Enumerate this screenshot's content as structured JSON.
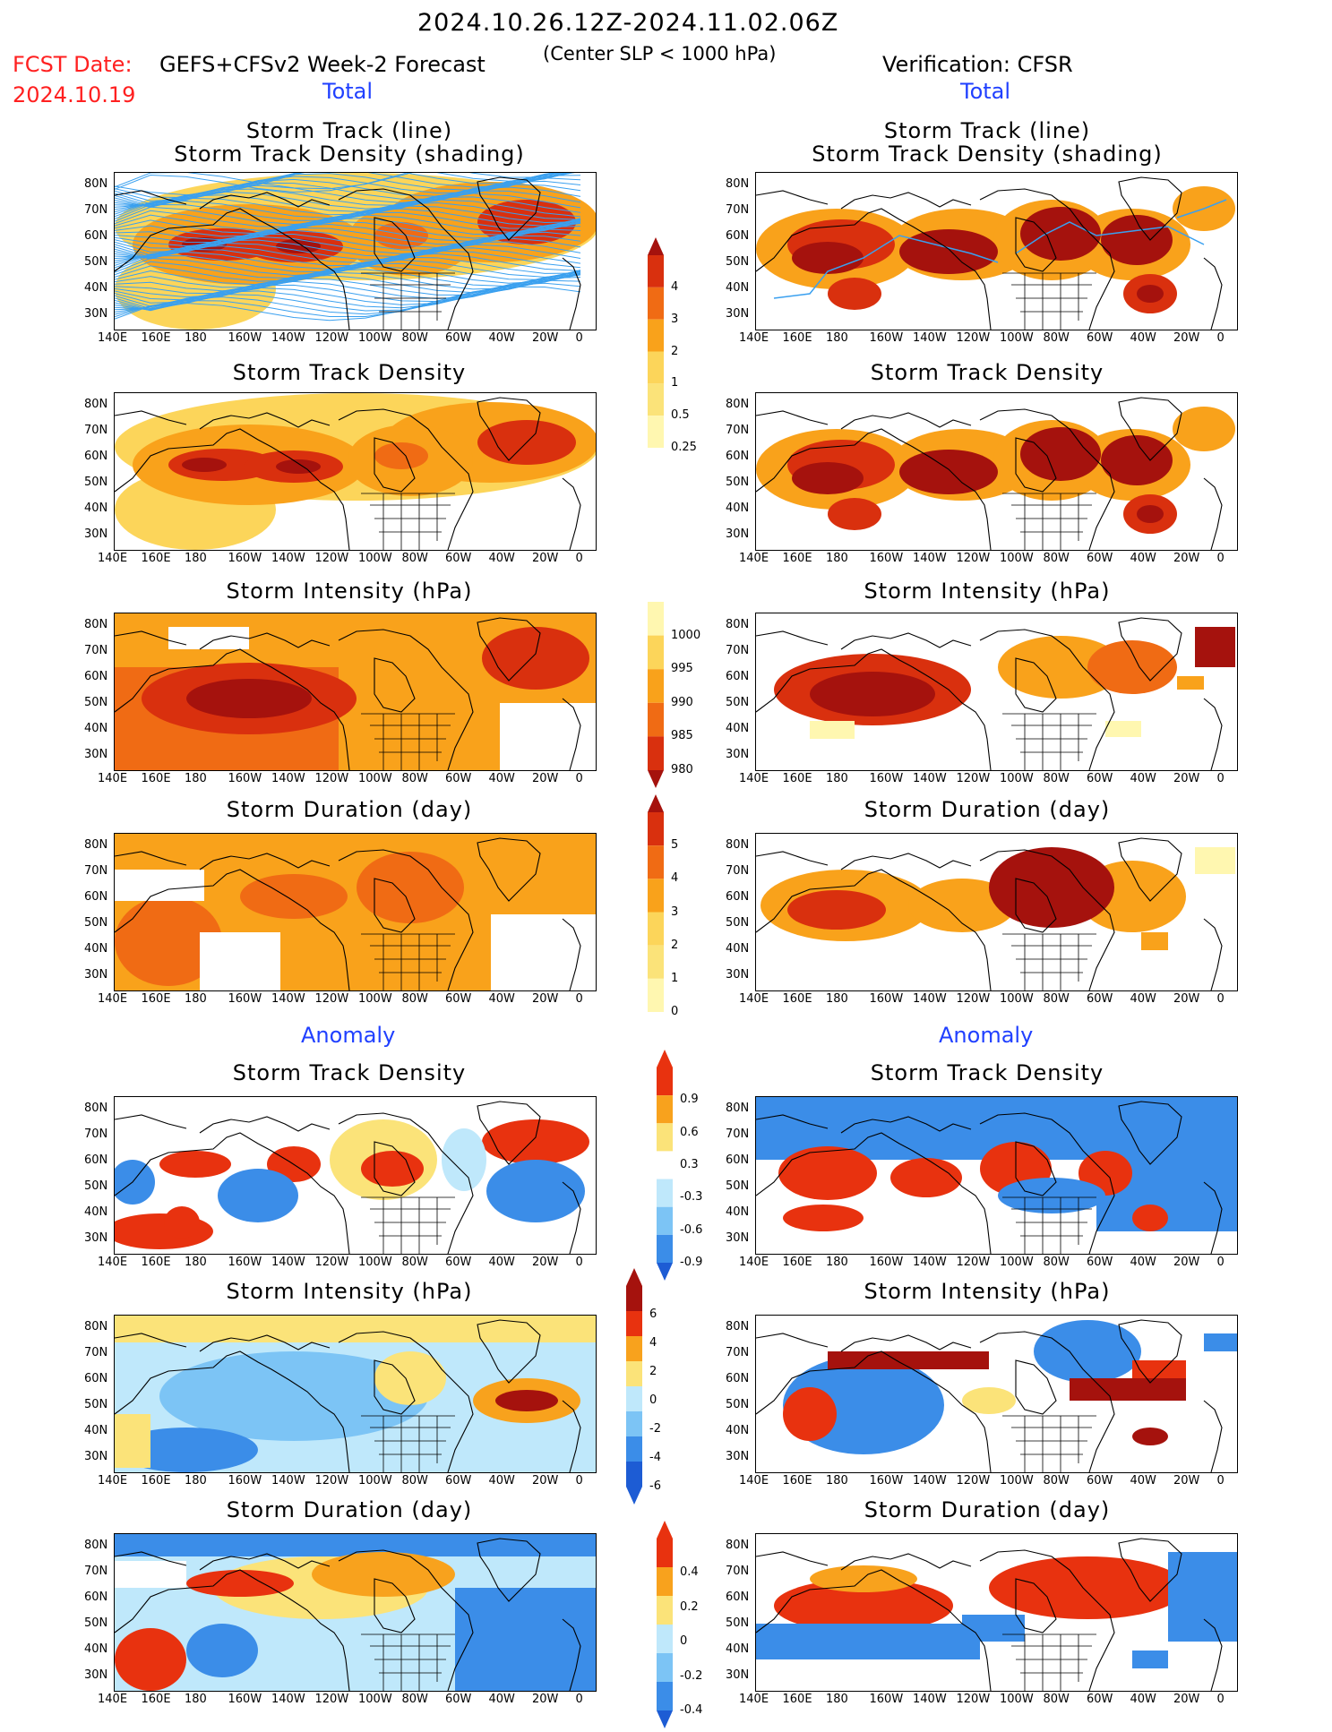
{
  "header": {
    "date_range": "2024.10.26.12Z-2024.11.02.06Z",
    "fcst_date_label": "FCST Date:",
    "fcst_date": "2024.10.19",
    "forecast_title": "GEFS+CFSv2 Week-2 Forecast",
    "criterion": "(Center SLP < 1000 hPa)",
    "verification": "Verification: CFSR"
  },
  "sections": {
    "total": "Total",
    "anomaly": "Anomaly"
  },
  "panel_titles": {
    "track_line": "Storm Track (line)",
    "track_shading": "Storm Track Density (shading)",
    "density": "Storm Track Density",
    "intensity": "Storm Intensity (hPa)",
    "duration": "Storm Duration (day)"
  },
  "axes": {
    "lat_labels": [
      "80N",
      "70N",
      "60N",
      "50N",
      "40N",
      "30N"
    ],
    "lon_labels": [
      "140E",
      "160E",
      "180",
      "160W",
      "140W",
      "120W",
      "100W",
      "80W",
      "60W",
      "40W",
      "20W",
      "0"
    ]
  },
  "colorbars": {
    "density_total": [
      "4",
      "3",
      "2",
      "1",
      "0.5",
      "0.25"
    ],
    "intensity_total": [
      "1000",
      "995",
      "990",
      "985",
      "980"
    ],
    "duration_total": [
      "5",
      "4",
      "3",
      "2",
      "1",
      "0"
    ],
    "density_anom": [
      "0.9",
      "0.6",
      "0.3",
      "-0.3",
      "-0.6",
      "-0.9"
    ],
    "intensity_anom": [
      "6",
      "4",
      "2",
      "0",
      "-2",
      "-4",
      "-6"
    ],
    "duration_anom": [
      "0.4",
      "0.2",
      "0",
      "-0.2",
      "-0.4"
    ]
  },
  "colors": {
    "lightyellow": "#fff7b0",
    "yellow": "#fcd55a",
    "orange": "#f9a21b",
    "darkorange": "#f06b14",
    "red": "#d9300e",
    "darkred": "#a5120d",
    "track_blue": "#3aa0ef",
    "lightblue": "#bfe8fb",
    "midblue": "#7cc4f5",
    "blue": "#3b8de8",
    "darkblue": "#1d5cd4",
    "anom_red": "#e8320f",
    "anom_orange": "#f8a21d",
    "anom_yellow": "#fbe379"
  }
}
